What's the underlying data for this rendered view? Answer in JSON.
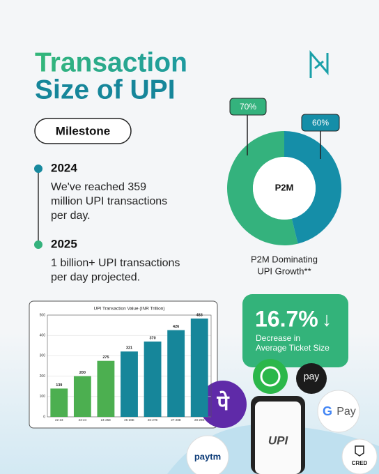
{
  "header": {
    "title_line1": "Transaction",
    "title_line2": "Size of UPI"
  },
  "milestone": "Milestone",
  "timeline": [
    {
      "year": "2024",
      "lines": [
        "We've reached 359",
        "million UPI transactions",
        "per day."
      ]
    },
    {
      "year": "2025",
      "lines": [
        "1 billion+ UPI transactions",
        "per day projected."
      ]
    }
  ],
  "stat": {
    "value": "16.7%",
    "arrow": "↓",
    "lines": [
      "Decrease in",
      "Average Ticket Size"
    ]
  },
  "brands": {
    "phonepe": "पे",
    "amazon": "pay",
    "gpay": "Pay",
    "paytm": "paytm",
    "cred": "CRED",
    "upi": "UPI"
  },
  "chart_data": [
    {
      "type": "pie",
      "donut": true,
      "center_label": "P2M",
      "caption": [
        "P2M Dominating",
        "UPI Growth**"
      ],
      "values": [
        70,
        60
      ],
      "value_labels": [
        "70%",
        "60%"
      ],
      "colors": [
        "#34b27d",
        "#158ea8"
      ]
    },
    {
      "type": "bar",
      "title": "UPI Transaction Value (INR Trillion)",
      "categories": [
        "22-23",
        "23-24",
        "24-25E",
        "25-26E",
        "26-27E",
        "27-28E",
        "28-29E"
      ],
      "values": [
        139,
        200,
        275,
        321,
        370,
        426,
        483
      ],
      "colors": [
        "#4caf50",
        "#4caf50",
        "#4caf50",
        "#16869a",
        "#16869a",
        "#16869a",
        "#16869a"
      ],
      "ylim": [
        0,
        500
      ],
      "yticks": [
        0,
        100,
        200,
        300,
        400,
        500
      ],
      "grid": true
    }
  ]
}
